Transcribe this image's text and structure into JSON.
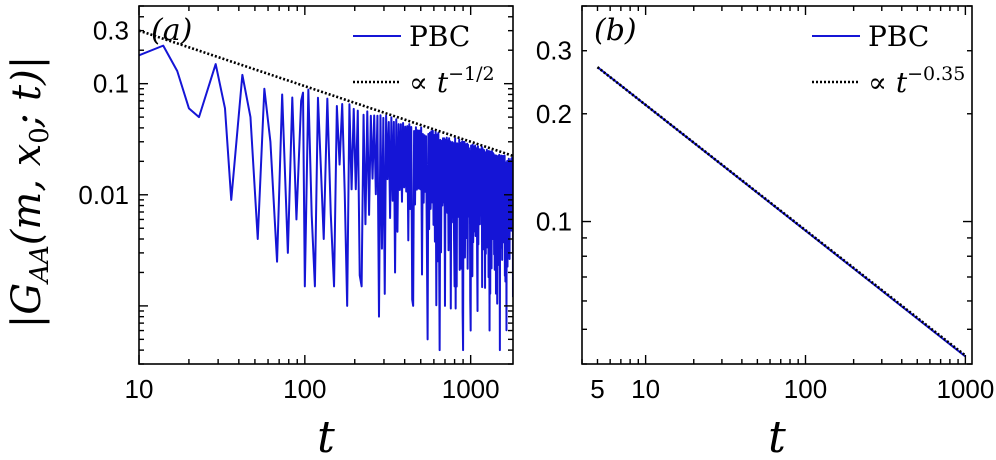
{
  "figure": {
    "ylabel": "|G_AA(m, x_0; t)|",
    "ylabel_parts": {
      "bar_left": "|",
      "G": "G",
      "sub": "AA",
      "args": "(m, x",
      "sub0": "0",
      "rest": "; t)",
      "bar_right": "|"
    }
  },
  "chart_data": [
    {
      "type": "line",
      "panel_label": "(a)",
      "xlabel": "t",
      "xscale": "log",
      "yscale": "log",
      "xlim": [
        10,
        1800
      ],
      "ylim": [
        0.0003,
        0.5
      ],
      "xticks": [
        10,
        100,
        1000
      ],
      "xtick_labels": [
        "10",
        "100",
        "1000"
      ],
      "yticks": [
        0.3,
        0.1,
        0.01
      ],
      "ytick_labels": [
        "0.3",
        "0.1",
        "0.01"
      ],
      "legend_position": "top-right",
      "series": [
        {
          "name": "PBC",
          "style": "solid",
          "color": "#1515d6",
          "oscillating": true,
          "envelope_coefficient": 0.95,
          "envelope_exponent": -0.5,
          "x": [
            10,
            14,
            17,
            20,
            23,
            29,
            33,
            36,
            42,
            47,
            52,
            57,
            62,
            68,
            73,
            79,
            84,
            89,
            95,
            100,
            115,
            130,
            150,
            180,
            220,
            280,
            350,
            450,
            550,
            650,
            700,
            800,
            900,
            1000,
            1100,
            1300,
            1500,
            1800
          ],
          "y": [
            0.18,
            0.22,
            0.13,
            0.06,
            0.05,
            0.15,
            0.06,
            0.009,
            0.12,
            0.05,
            0.004,
            0.09,
            0.03,
            0.0025,
            0.08,
            0.003,
            0.075,
            0.006,
            0.07,
            0.0015,
            0.0015,
            0.004,
            0.0015,
            0.001,
            0.0015,
            0.0008,
            0.002,
            0.001,
            0.0005,
            0.0004,
            0.001,
            0.0015,
            0.0004,
            0.0006,
            0.0009,
            0.0006,
            0.0004,
            0.0012
          ]
        },
        {
          "name": "∝ t^{-1/2}",
          "style": "dotted",
          "color": "#000000",
          "coefficient": 0.95,
          "exponent": -0.5
        }
      ],
      "legend": [
        {
          "label": "PBC",
          "style": "solid",
          "color": "#1515d6"
        },
        {
          "prefix": "∝ t",
          "sup": "−1/2",
          "style": "dotted",
          "color": "#000000"
        }
      ]
    },
    {
      "type": "line",
      "panel_label": "(b)",
      "xlabel": "t",
      "xscale": "log",
      "yscale": "log",
      "xlim": [
        4,
        1100
      ],
      "ylim": [
        0.04,
        0.4
      ],
      "xticks": [
        5,
        10,
        100,
        1000
      ],
      "xtick_labels": [
        "5",
        "10",
        "100",
        "1000"
      ],
      "yticks": [
        0.3,
        0.2,
        0.1
      ],
      "ytick_labels": [
        "0.3",
        "0.2",
        "0.1"
      ],
      "legend_position": "top-right",
      "series": [
        {
          "name": "PBC",
          "style": "solid",
          "color": "#1515d6",
          "x": [
            5,
            1000
          ],
          "y": [
            0.27,
            0.042
          ]
        },
        {
          "name": "∝ t^{-0.35}",
          "style": "dotted",
          "color": "#000000",
          "coefficient": 0.474,
          "exponent": -0.35
        }
      ],
      "legend": [
        {
          "label": "PBC",
          "style": "solid",
          "color": "#1515d6"
        },
        {
          "prefix": "∝ t",
          "sup": "−0.35",
          "style": "dotted",
          "color": "#000000"
        }
      ]
    }
  ]
}
